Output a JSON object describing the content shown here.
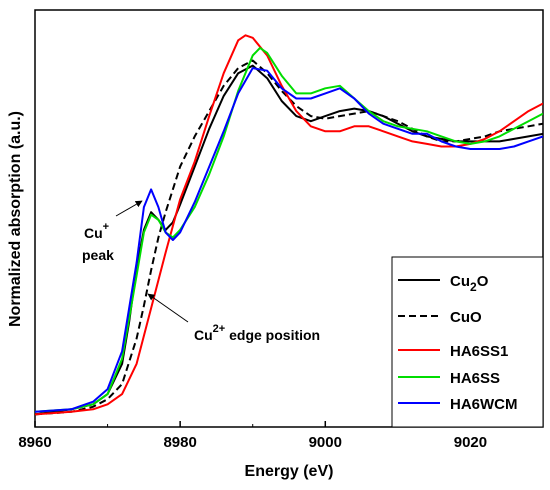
{
  "chart_data": {
    "type": "line",
    "xlabel": "Energy (eV)",
    "ylabel": "Normalized absorption (a.u.)",
    "xlim": [
      8960,
      9030
    ],
    "ylim": [
      -0.05,
      1.6
    ],
    "yticks_shown": false,
    "x_ticks": [
      8960,
      8980,
      9000,
      9020
    ],
    "x_tick_labels": [
      "8960",
      "8980",
      "9000",
      "9020"
    ],
    "grid": false,
    "legend_position": "bottom-right",
    "annotations": [
      {
        "text_main": "Cu",
        "text_sup": "+",
        "text_line2": "peak",
        "points_to": [
          8976,
          0.87
        ]
      },
      {
        "text_main": "Cu",
        "text_sup": "2+",
        "text_after": " edge position",
        "points_to": [
          8975,
          0.43
        ]
      }
    ],
    "series": [
      {
        "name": "Cu2O",
        "label_main": "Cu",
        "label_sub": "2",
        "label_after": "O",
        "color": "#000000",
        "dash": "solid",
        "x": [
          8960,
          8965,
          8968,
          8970,
          8972,
          8973,
          8974,
          8975,
          8976,
          8977,
          8978,
          8979,
          8980,
          8982,
          8984,
          8986,
          8988,
          8990,
          8992,
          8994,
          8996,
          8998,
          9000,
          9002,
          9004,
          9006,
          9008,
          9010,
          9012,
          9014,
          9016,
          9018,
          9020,
          9022,
          9024,
          9026,
          9028,
          9030
        ],
        "y": [
          0,
          0.02,
          0.04,
          0.08,
          0.2,
          0.37,
          0.58,
          0.73,
          0.8,
          0.77,
          0.73,
          0.76,
          0.83,
          0.98,
          1.13,
          1.26,
          1.35,
          1.38,
          1.33,
          1.24,
          1.18,
          1.16,
          1.18,
          1.2,
          1.21,
          1.2,
          1.18,
          1.15,
          1.12,
          1.1,
          1.09,
          1.08,
          1.08,
          1.08,
          1.08,
          1.09,
          1.1,
          1.11
        ]
      },
      {
        "name": "CuO",
        "label_main": "CuO",
        "color": "#000000",
        "dash": "dashed",
        "x": [
          8960,
          8965,
          8968,
          8970,
          8972,
          8974,
          8975,
          8976,
          8977,
          8978,
          8980,
          8982,
          8984,
          8986,
          8988,
          8990,
          8992,
          8994,
          8996,
          8998,
          9000,
          9002,
          9004,
          9006,
          9008,
          9010,
          9012,
          9014,
          9016,
          9018,
          9020,
          9022,
          9024,
          9026,
          9028,
          9030
        ],
        "y": [
          0,
          0.01,
          0.03,
          0.06,
          0.12,
          0.3,
          0.43,
          0.57,
          0.7,
          0.8,
          0.98,
          1.1,
          1.2,
          1.3,
          1.37,
          1.4,
          1.35,
          1.28,
          1.22,
          1.18,
          1.17,
          1.18,
          1.19,
          1.2,
          1.18,
          1.16,
          1.13,
          1.1,
          1.08,
          1.08,
          1.09,
          1.1,
          1.12,
          1.13,
          1.14,
          1.15
        ]
      },
      {
        "name": "HA6SS1",
        "label_main": "HA6SS1",
        "color": "#ff0000",
        "dash": "solid",
        "x": [
          8960,
          8965,
          8968,
          8970,
          8972,
          8974,
          8976,
          8978,
          8980,
          8982,
          8984,
          8986,
          8988,
          8989,
          8990,
          8992,
          8994,
          8996,
          8998,
          9000,
          9002,
          9004,
          9006,
          9008,
          9010,
          9012,
          9014,
          9016,
          9018,
          9020,
          9022,
          9024,
          9026,
          9028,
          9030
        ],
        "y": [
          0,
          0.01,
          0.02,
          0.04,
          0.08,
          0.2,
          0.42,
          0.64,
          0.85,
          1.0,
          1.18,
          1.35,
          1.48,
          1.5,
          1.49,
          1.42,
          1.3,
          1.2,
          1.14,
          1.12,
          1.12,
          1.14,
          1.14,
          1.12,
          1.1,
          1.08,
          1.07,
          1.06,
          1.06,
          1.07,
          1.09,
          1.12,
          1.16,
          1.2,
          1.23
        ]
      },
      {
        "name": "HA6SS",
        "label_main": "HA6SS",
        "color": "#00dd00",
        "dash": "solid",
        "x": [
          8960,
          8965,
          8968,
          8970,
          8972,
          8974,
          8975,
          8976,
          8977,
          8978,
          8979,
          8980,
          8982,
          8984,
          8986,
          8988,
          8990,
          8991,
          8992,
          8994,
          8996,
          8998,
          9000,
          9002,
          9004,
          9006,
          9008,
          9010,
          9012,
          9014,
          9016,
          9018,
          9020,
          9022,
          9024,
          9026,
          9028,
          9030
        ],
        "y": [
          0.01,
          0.02,
          0.04,
          0.08,
          0.22,
          0.55,
          0.72,
          0.79,
          0.77,
          0.72,
          0.7,
          0.73,
          0.82,
          0.95,
          1.1,
          1.28,
          1.42,
          1.45,
          1.43,
          1.34,
          1.27,
          1.27,
          1.29,
          1.3,
          1.25,
          1.2,
          1.16,
          1.14,
          1.13,
          1.12,
          1.1,
          1.08,
          1.07,
          1.08,
          1.1,
          1.13,
          1.16,
          1.19
        ]
      },
      {
        "name": "HA6WCM",
        "label_main": "HA6WCM",
        "color": "#0000ff",
        "dash": "solid",
        "x": [
          8960,
          8965,
          8968,
          8970,
          8972,
          8974,
          8975,
          8976,
          8977,
          8978,
          8979,
          8980,
          8982,
          8984,
          8986,
          8988,
          8990,
          8992,
          8994,
          8996,
          8998,
          9000,
          9002,
          9004,
          9006,
          9008,
          9010,
          9012,
          9014,
          9016,
          9018,
          9020,
          9022,
          9024,
          9026,
          9028,
          9030
        ],
        "y": [
          0.01,
          0.02,
          0.05,
          0.1,
          0.25,
          0.6,
          0.82,
          0.89,
          0.82,
          0.72,
          0.69,
          0.72,
          0.84,
          0.98,
          1.12,
          1.27,
          1.37,
          1.36,
          1.29,
          1.25,
          1.25,
          1.27,
          1.29,
          1.25,
          1.19,
          1.15,
          1.13,
          1.11,
          1.11,
          1.08,
          1.06,
          1.05,
          1.05,
          1.05,
          1.06,
          1.08,
          1.1
        ]
      }
    ]
  }
}
